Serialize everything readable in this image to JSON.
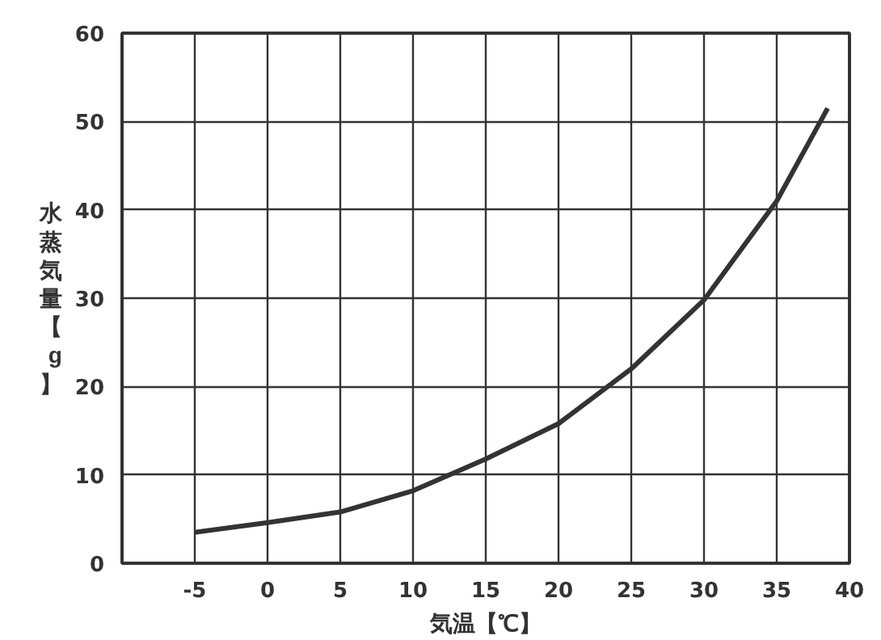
{
  "chart_data": {
    "type": "line",
    "xlabel": "気温【℃】",
    "ylabel": "水蒸気量【g】",
    "x": [
      -5,
      0,
      5,
      10,
      15,
      20,
      25,
      30,
      35,
      38.5
    ],
    "series": [
      {
        "color": "#333333",
        "values": [
          3.5,
          4.6,
          5.8,
          8.2,
          11.8,
          15.8,
          22,
          29.8,
          41,
          51.5
        ]
      }
    ],
    "xlim": [
      -10,
      40
    ],
    "xticks": [
      {
        "value": -10,
        "label": null
      },
      -5,
      0,
      5,
      10,
      15,
      20,
      25,
      30,
      35,
      40
    ],
    "ylim": [
      0,
      60
    ],
    "yticks": [
      0,
      10,
      20,
      30,
      40,
      50,
      60
    ],
    "grid": true,
    "marker": "none",
    "line_style": "solid"
  }
}
